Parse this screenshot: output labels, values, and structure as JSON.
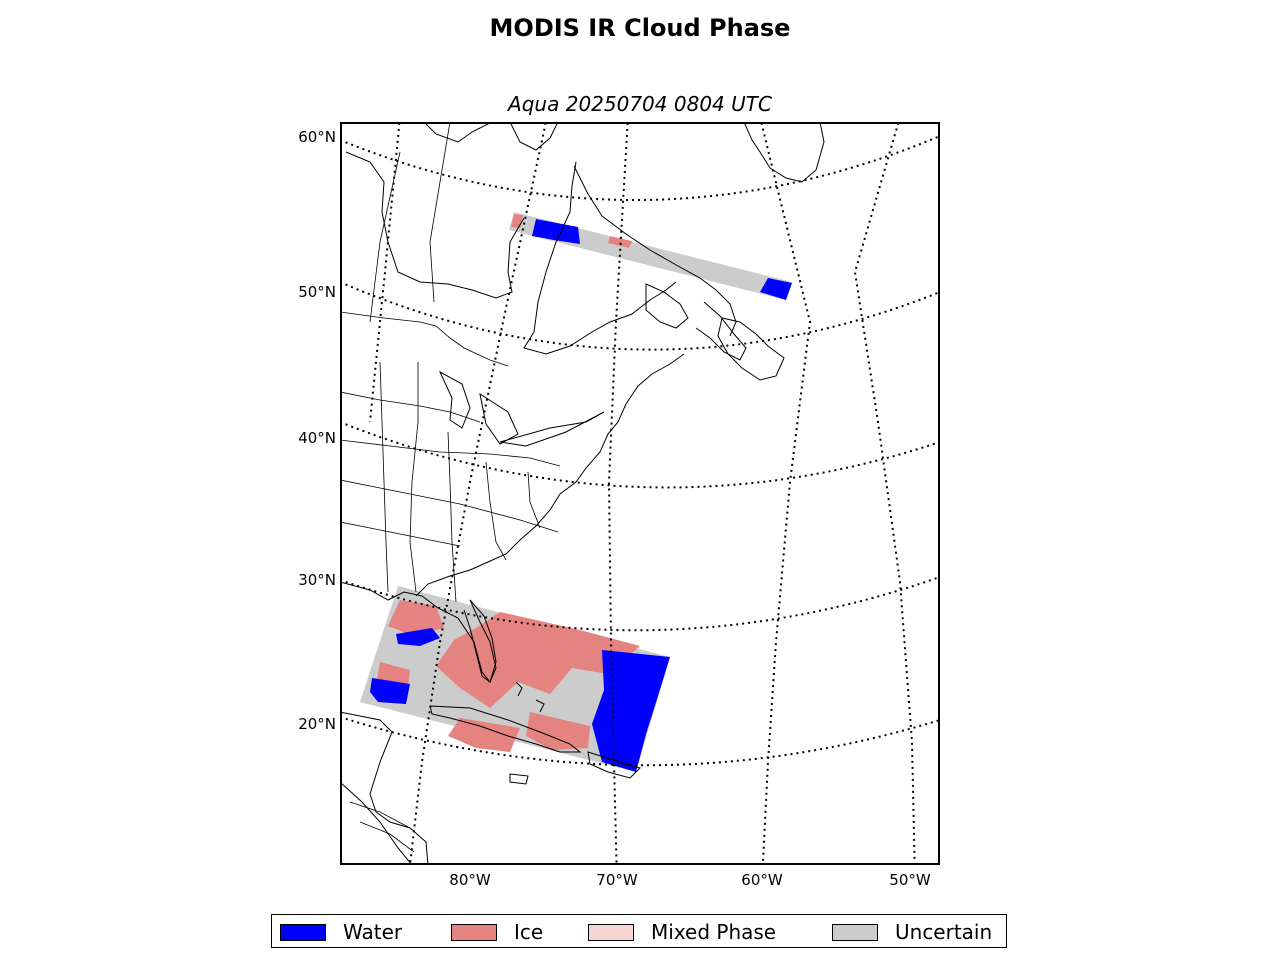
{
  "title": "MODIS IR Cloud Phase",
  "subtitle": "Aqua 20250704 0804 UTC",
  "lat_labels": [
    "60°N",
    "50°N",
    "40°N",
    "30°N",
    "20°N"
  ],
  "lon_labels": [
    "80°W",
    "70°W",
    "60°W",
    "50°W"
  ],
  "legend": [
    {
      "label": "Water",
      "color": "#0000ff"
    },
    {
      "label": "Ice",
      "color": "#e4837f"
    },
    {
      "label": "Mixed Phase",
      "color": "#f5d6d5"
    },
    {
      "label": "Uncertain",
      "color": "#cccccc"
    }
  ],
  "colors": {
    "water": "#0000ff",
    "ice": "#e4837f",
    "mixed": "#f5d6d5",
    "uncertain": "#cccccc"
  }
}
